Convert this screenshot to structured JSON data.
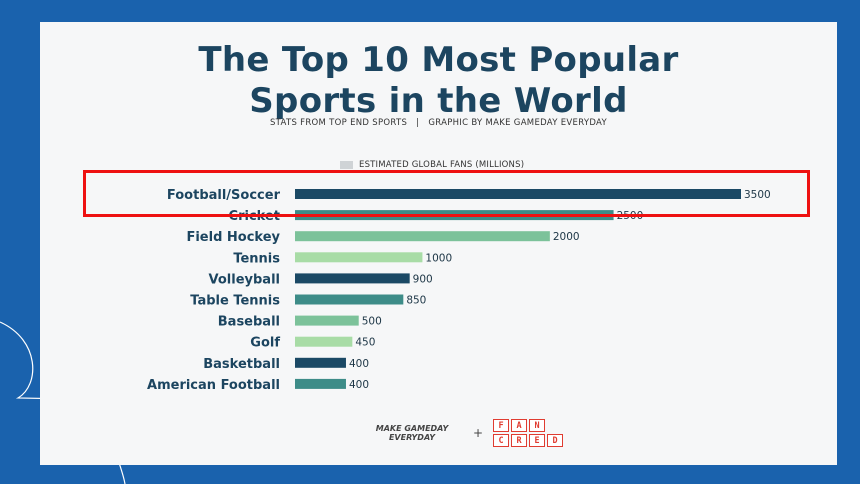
{
  "header": {
    "title_line1": "The Top 10 Most Popular",
    "title_line2": "Sports in the World",
    "subtitle": "STATS FROM TOP END SPORTS   |   GRAPHIC BY MAKE GAMEDAY EVERYDAY"
  },
  "legend": {
    "label": "ESTIMATED GLOBAL FANS (MILLIONS)",
    "swatch_color": "#cfd3d6"
  },
  "chart_data": {
    "type": "bar",
    "orientation": "horizontal",
    "categories": [
      "Football/Soccer",
      "Cricket",
      "Field Hockey",
      "Tennis",
      "Volleyball",
      "Table Tennis",
      "Baseball",
      "Golf",
      "Basketball",
      "American Football"
    ],
    "values": [
      3500,
      2500,
      2000,
      1000,
      900,
      850,
      500,
      450,
      400,
      400
    ],
    "value_labels": [
      "3500",
      "2500",
      "2000",
      "1000",
      "900",
      "850",
      "500",
      "450",
      "400",
      "400"
    ],
    "bar_colors": [
      "#1b4965",
      "#3d8c88",
      "#7cc29a",
      "#a8dca6",
      "#1b4965",
      "#3d8c88",
      "#7cc29a",
      "#a8dca6",
      "#1b4965",
      "#3d8c88"
    ],
    "xlim": [
      0,
      3500
    ],
    "grid": false,
    "legend_position": "top"
  },
  "footer": {
    "brand_left_line1": "MAKE GAMEDAY",
    "brand_left_line2": "EVERYDAY",
    "plus": "+",
    "fancred_letters": [
      "F",
      "A",
      "N",
      "",
      "C",
      "R",
      "E",
      "D"
    ]
  },
  "colors": {
    "background": "#1a62ad",
    "panel": "#f6f7f8",
    "title": "#1c4560",
    "highlight": "#ee1111"
  }
}
